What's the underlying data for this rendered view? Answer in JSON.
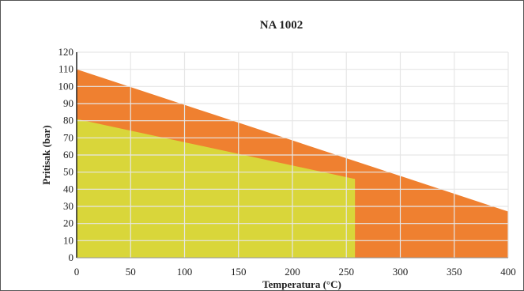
{
  "chart_data": {
    "type": "area",
    "title": "NA 1002",
    "xlabel": "Temperatura (°C)",
    "ylabel": "Pritisak (bar)",
    "xlim": [
      0,
      400
    ],
    "ylim": [
      0,
      120
    ],
    "x_ticks": [
      "0",
      "50",
      "100",
      "150",
      "200",
      "250",
      "300",
      "350",
      "400"
    ],
    "y_ticks": [
      "0",
      "10",
      "20",
      "30",
      "40",
      "50",
      "60",
      "70",
      "80",
      "90",
      "100",
      "110",
      "120"
    ],
    "grid": true,
    "legend": "none",
    "series": [
      {
        "color": "#ef8030",
        "x": [
          0,
          400
        ],
        "y": [
          110,
          27
        ]
      },
      {
        "color": "#d9d63a",
        "x": [
          0,
          258,
          258
        ],
        "y": [
          81,
          46,
          0
        ]
      }
    ]
  }
}
